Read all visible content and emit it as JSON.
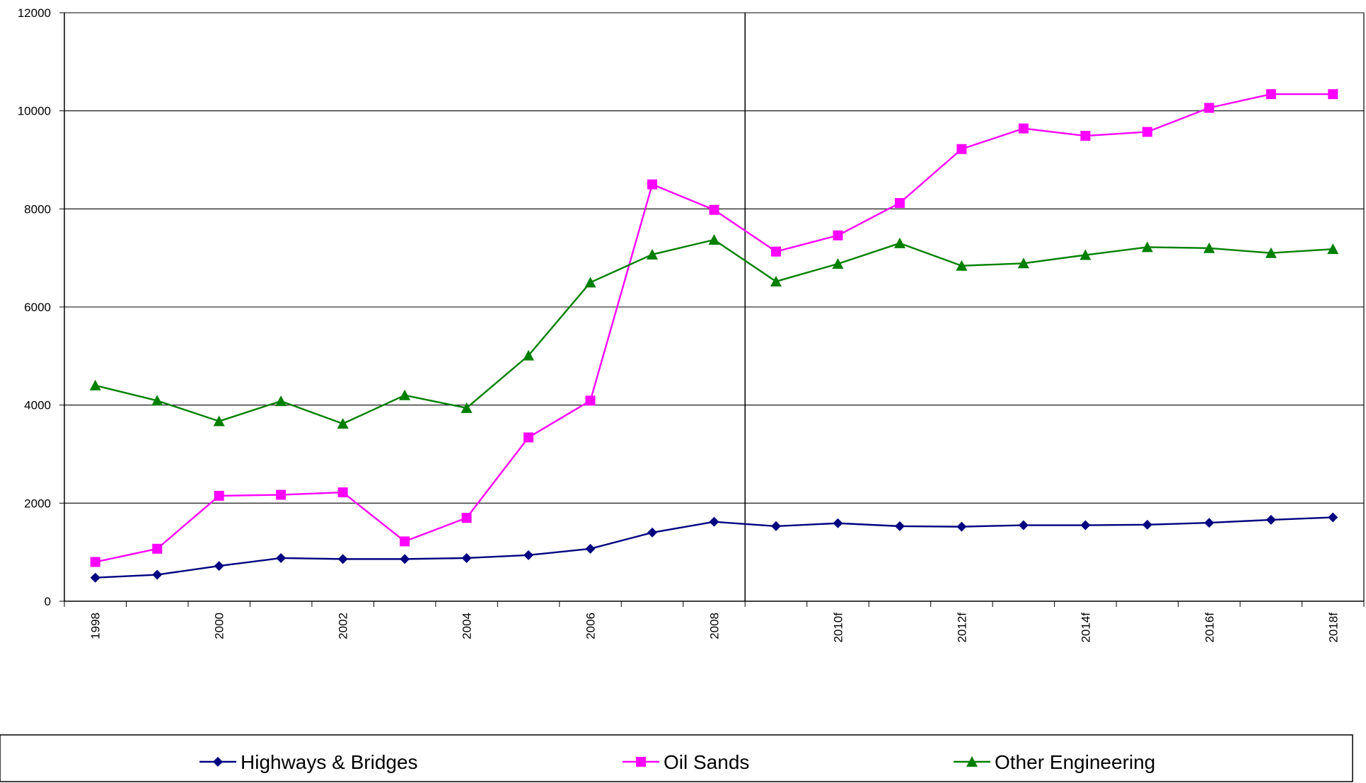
{
  "chart_data": {
    "type": "line",
    "x": [
      "1998",
      "1999",
      "2000",
      "2001",
      "2002",
      "2003",
      "2004",
      "2005",
      "2006",
      "2007",
      "2008",
      "2009",
      "2010f",
      "2011f",
      "2012f",
      "2013f",
      "2014f",
      "2015f",
      "2016f",
      "2017f",
      "2018f"
    ],
    "x_tick_labels": [
      "1998",
      "2000",
      "2002",
      "2004",
      "2006",
      "2008",
      "2010f",
      "2012f",
      "2014f",
      "2016f",
      "2018f"
    ],
    "y_tick_labels": [
      "0",
      "2000",
      "4000",
      "6000",
      "8000",
      "10000",
      "12000"
    ],
    "ylim": [
      0,
      12000
    ],
    "grid": true,
    "forecast_divider_after": "2008",
    "legend_position": "bottom",
    "series": [
      {
        "name": "Highways & Bridges",
        "color": "#000080",
        "marker": "diamond",
        "values": [
          480,
          540,
          720,
          880,
          860,
          860,
          880,
          940,
          1070,
          1400,
          1620,
          1530,
          1590,
          1530,
          1520,
          1550,
          1550,
          1560,
          1600,
          1660,
          1710
        ]
      },
      {
        "name": "Oil Sands",
        "color": "#FF00FF",
        "marker": "square",
        "values": [
          800,
          1070,
          2150,
          2170,
          2220,
          1220,
          1700,
          3340,
          4090,
          8500,
          7980,
          7130,
          7460,
          8120,
          9220,
          9640,
          9490,
          9570,
          10060,
          10340,
          10340
        ]
      },
      {
        "name": "Other Engineering",
        "color": "#008000",
        "marker": "triangle",
        "values": [
          4400,
          4090,
          3670,
          4080,
          3620,
          4200,
          3940,
          5010,
          6500,
          7070,
          7370,
          6520,
          6880,
          7300,
          6840,
          6890,
          7060,
          7220,
          7200,
          7100,
          7180
        ]
      }
    ]
  }
}
